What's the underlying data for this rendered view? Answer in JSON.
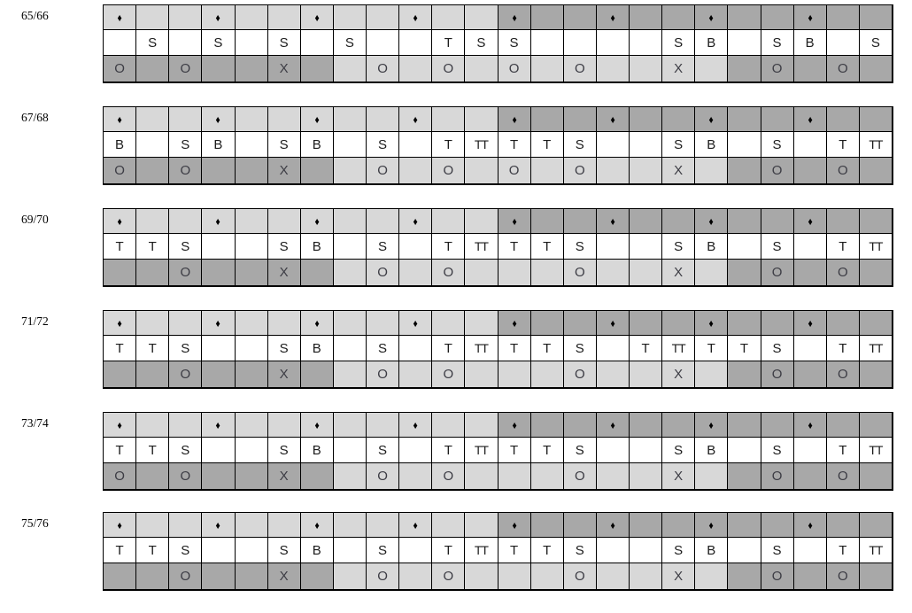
{
  "colors": {
    "cell_light_gray": "#d8d8d8",
    "cell_dark_gray": "#a8a8a8",
    "cell_white": "#ffffff",
    "grid_line": "#000000",
    "diamond_color": "#000000",
    "stitch_letter_color": "#1c1c1c",
    "mark_letter_color": "#3c3c44"
  },
  "grid": {
    "columns": 24,
    "diamond_row": {
      "symbol": "♦",
      "diamond_cells": [
        1,
        4,
        7,
        10,
        13,
        16,
        19,
        22
      ],
      "light_through_column": 12
    },
    "mark_row_shading": {
      "dark_ranges": [
        [
          1,
          7
        ],
        [
          20,
          24
        ]
      ],
      "light_ranges": [
        [
          8,
          19
        ]
      ]
    }
  },
  "blocks": [
    {
      "label": "65/66",
      "letters": {
        "2": "S",
        "4": "S",
        "6": "S",
        "8": "S",
        "11": "T",
        "12": "S",
        "13": "S",
        "18": "S",
        "19": "B",
        "21": "S",
        "22": "B",
        "24": "S"
      },
      "marks": {
        "1": "O",
        "3": "O",
        "6": "X",
        "9": "O",
        "11": "O",
        "13": "O",
        "15": "O",
        "18": "X",
        "21": "O",
        "23": "O"
      }
    },
    {
      "label": "67/68",
      "letters": {
        "1": "B",
        "3": "S",
        "4": "B",
        "6": "S",
        "7": "B",
        "9": "S",
        "11": "T",
        "12": "TT",
        "13": "T",
        "14": "T",
        "15": "S",
        "18": "S",
        "19": "B",
        "21": "S",
        "23": "T",
        "24": "TT"
      },
      "marks": {
        "1": "O",
        "3": "O",
        "6": "X",
        "9": "O",
        "11": "O",
        "13": "O",
        "15": "O",
        "18": "X",
        "21": "O",
        "23": "O"
      }
    },
    {
      "label": "69/70",
      "letters": {
        "1": "T",
        "2": "T",
        "3": "S",
        "6": "S",
        "7": "B",
        "9": "S",
        "11": "T",
        "12": "TT",
        "13": "T",
        "14": "T",
        "15": "S",
        "18": "S",
        "19": "B",
        "21": "S",
        "23": "T",
        "24": "TT"
      },
      "marks": {
        "3": "O",
        "6": "X",
        "9": "O",
        "11": "O",
        "15": "O",
        "18": "X",
        "21": "O",
        "23": "O"
      }
    },
    {
      "label": "71/72",
      "letters": {
        "1": "T",
        "2": "T",
        "3": "S",
        "6": "S",
        "7": "B",
        "9": "S",
        "11": "T",
        "12": "TT",
        "13": "T",
        "14": "T",
        "15": "S",
        "17": "T",
        "18": "TT",
        "19": "T",
        "20": "T",
        "21": "S",
        "23": "T",
        "24": "TT"
      },
      "marks": {
        "3": "O",
        "6": "X",
        "9": "O",
        "11": "O",
        "15": "O",
        "18": "X",
        "21": "O",
        "23": "O"
      }
    },
    {
      "label": "73/74",
      "letters": {
        "1": "T",
        "2": "T",
        "3": "S",
        "6": "S",
        "7": "B",
        "9": "S",
        "11": "T",
        "12": "TT",
        "13": "T",
        "14": "T",
        "15": "S",
        "18": "S",
        "19": "B",
        "21": "S",
        "23": "T",
        "24": "TT"
      },
      "marks": {
        "1": "O",
        "3": "O",
        "6": "X",
        "9": "O",
        "11": "O",
        "15": "O",
        "18": "X",
        "21": "O",
        "23": "O"
      }
    },
    {
      "label": "75/76",
      "letters": {
        "1": "T",
        "2": "T",
        "3": "S",
        "6": "S",
        "7": "B",
        "9": "S",
        "11": "T",
        "12": "TT",
        "13": "T",
        "14": "T",
        "15": "S",
        "18": "S",
        "19": "B",
        "21": "S",
        "23": "T",
        "24": "TT"
      },
      "marks": {
        "3": "O",
        "6": "X",
        "9": "O",
        "11": "O",
        "15": "O",
        "18": "X",
        "21": "O",
        "23": "O"
      }
    }
  ]
}
